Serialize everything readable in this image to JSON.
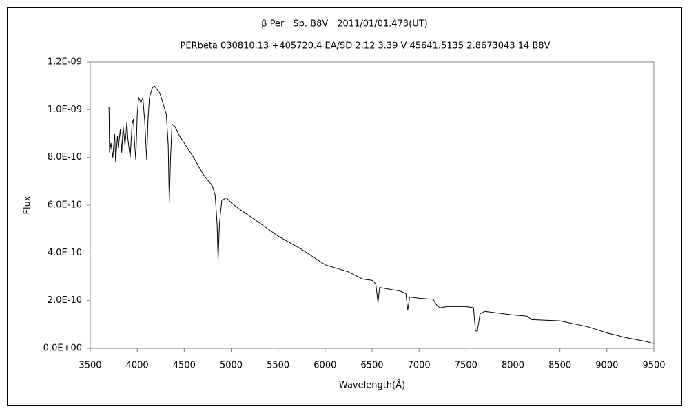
{
  "chart_data": {
    "type": "line",
    "title": "β Per　Sp. B8V　2011/01/01.473(UT)",
    "subtitle": "PERbeta 030810.13 +405720.4 EA/SD 2.12 3.39 V 45641.5135 2.8673043 14 B8V",
    "x_label": "Wavelength(Å)",
    "y_label": "Flux",
    "color": "#000000",
    "xlim": [
      3500,
      9500
    ],
    "xticks": [
      3500,
      4000,
      4500,
      5000,
      5500,
      6000,
      6500,
      7000,
      7500,
      8000,
      8500,
      9000,
      9500
    ],
    "ylim": [
      0,
      1.2e-09
    ],
    "yticks": [
      {
        "value": 0,
        "label": "0.0E+00"
      },
      {
        "value": 2e-10,
        "label": "2.0E-10"
      },
      {
        "value": 4e-10,
        "label": "4.0E-10"
      },
      {
        "value": 6e-10,
        "label": "6.0E-10"
      },
      {
        "value": 8e-10,
        "label": "8.0E-10"
      },
      {
        "value": 1e-09,
        "label": "1.0E-09"
      },
      {
        "value": 1.2e-09,
        "label": "1.2E-09"
      }
    ],
    "x": [
      3700,
      3705,
      3720,
      3740,
      3760,
      3770,
      3790,
      3800,
      3820,
      3835,
      3850,
      3870,
      3890,
      3900,
      3925,
      3945,
      3960,
      3970,
      3985,
      4000,
      4015,
      4040,
      4060,
      4080,
      4101,
      4115,
      4130,
      4160,
      4180,
      4200,
      4240,
      4280,
      4310,
      4330,
      4341,
      4355,
      4370,
      4400,
      4450,
      4500,
      4600,
      4700,
      4800,
      4830,
      4850,
      4861,
      4875,
      4900,
      4950,
      5000,
      5100,
      5250,
      5500,
      5750,
      6000,
      6250,
      6400,
      6500,
      6540,
      6563,
      6580,
      6650,
      6800,
      6860,
      6880,
      6900,
      7000,
      7150,
      7190,
      7220,
      7300,
      7500,
      7580,
      7600,
      7620,
      7650,
      7700,
      8000,
      8150,
      8200,
      8500,
      8800,
      9000,
      9200,
      9400,
      9500
    ],
    "values": [
      1.01e-09,
      8.2e-10,
      8.6e-10,
      8e-10,
      9e-10,
      7.8e-10,
      8.9e-10,
      8.4e-10,
      9.2e-10,
      8.2e-10,
      9.3e-10,
      8.5e-10,
      9.5e-10,
      8.8e-10,
      8e-10,
      9.4e-10,
      9.6e-10,
      8.7e-10,
      7.9e-10,
      9.8e-10,
      1.05e-09,
      1.03e-09,
      1.05e-09,
      9.5e-10,
      7.9e-10,
      9.6e-10,
      1.05e-09,
      1.09e-09,
      1.1e-09,
      1.09e-09,
      1.07e-09,
      1.02e-09,
      9.8e-10,
      8.5e-10,
      6.1e-10,
      8e-10,
      9.4e-10,
      9.3e-10,
      8.9e-10,
      8.6e-10,
      8e-10,
      7.3e-10,
      6.8e-10,
      6.4e-10,
      5.2e-10,
      3.7e-10,
      5.2e-10,
      6.2e-10,
      6.3e-10,
      6.1e-10,
      5.8e-10,
      5.4e-10,
      4.7e-10,
      4.15e-10,
      3.5e-10,
      3.2e-10,
      2.9e-10,
      2.85e-10,
      2.7e-10,
      1.9e-10,
      2.55e-10,
      2.5e-10,
      2.4e-10,
      2.3e-10,
      1.6e-10,
      2.15e-10,
      2.1e-10,
      2.05e-10,
      1.8e-10,
      1.7e-10,
      1.75e-10,
      1.75e-10,
      1.7e-10,
      7.5e-11,
      7e-11,
      1.45e-10,
      1.55e-10,
      1.4e-10,
      1.35e-10,
      1.2e-10,
      1.15e-10,
      9e-11,
      6.5e-11,
      4.5e-11,
      3e-11,
      2e-11
    ]
  }
}
